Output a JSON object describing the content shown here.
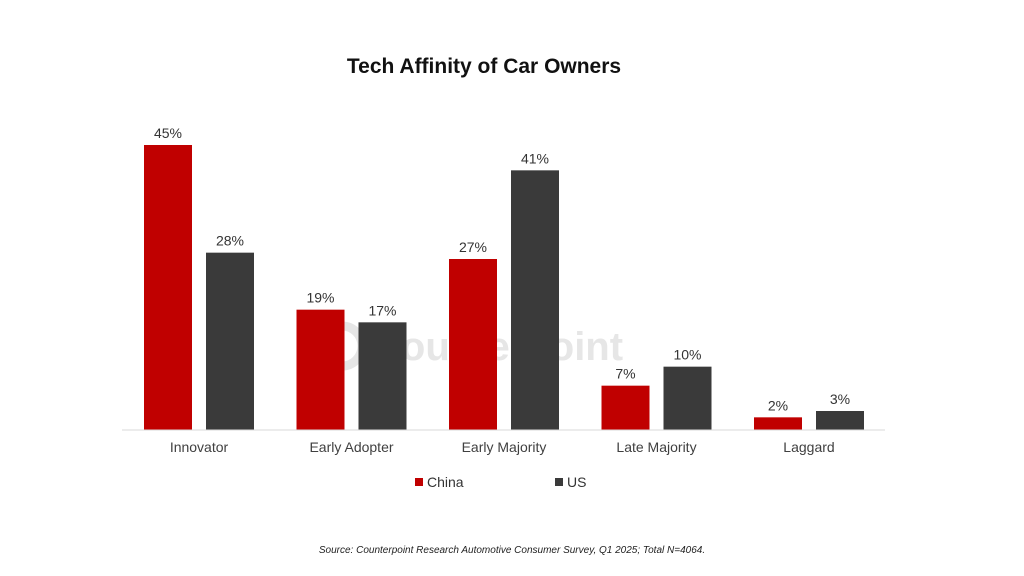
{
  "source_note": "Source:  Counterpoint Research Automotive Consumer Survey, Q1 2025; Total N=4064.",
  "watermark": {
    "text": "Counterpoint",
    "color": "#e6e6e6"
  },
  "chart_data": {
    "type": "bar",
    "title": "Tech Affinity of Car Owners",
    "xlabel": "",
    "ylabel": "",
    "categories": [
      "Innovator",
      "Early Adopter",
      "Early Majority",
      "Late Majority",
      "Laggard"
    ],
    "series": [
      {
        "name": "China",
        "color": "#c00000",
        "values": [
          45,
          19,
          27,
          7,
          2
        ],
        "labels": [
          "45%",
          "19%",
          "27%",
          "7%",
          "2%"
        ]
      },
      {
        "name": "US",
        "color": "#3a3a3a",
        "values": [
          28,
          17,
          41,
          10,
          3
        ],
        "labels": [
          "28%",
          "17%",
          "41%",
          "10%",
          "3%"
        ]
      }
    ],
    "ylim": [
      0,
      45
    ],
    "grid": false,
    "legend_position": "bottom"
  }
}
